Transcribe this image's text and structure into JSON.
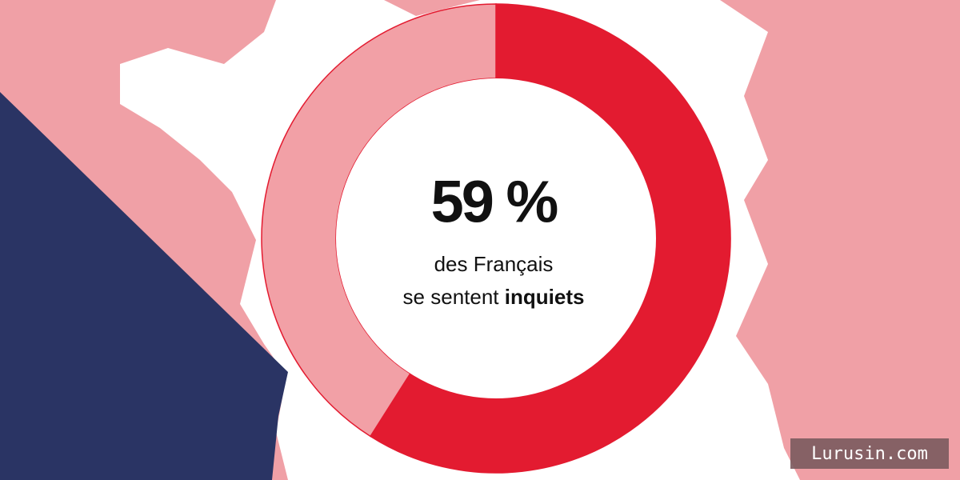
{
  "chart_data": {
    "type": "donut",
    "values": [
      59,
      41
    ],
    "value_labels": [
      "59 %",
      null
    ],
    "colors": [
      "#e31b30",
      "#f2a0a6"
    ],
    "caption": {
      "line1": "des Français",
      "line2": "se sentent",
      "emphasis": "inquiets"
    }
  },
  "watermark": "Lurusin.com"
}
